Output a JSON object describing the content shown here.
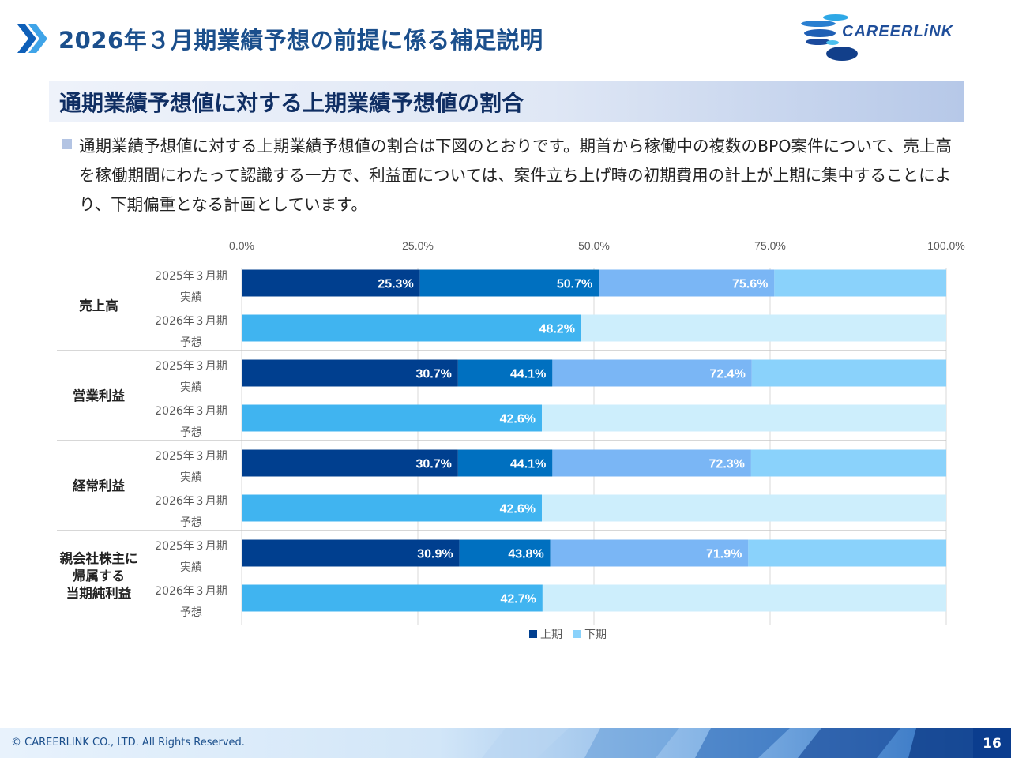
{
  "header": {
    "title": "2026年３月期業績予想の前提に係る補足説明",
    "logo_text": "CAREERLiNK"
  },
  "section": {
    "title": "通期業績予想値に対する上期業績予想値の割合",
    "description": "通期業績予想値に対する上期業績予想値の割合は下図のとおりです。期首から稼働中の複数のBPO案件について、売上高を稼働期間にわたって認識する一方で、利益面については、案件立ち上げ時の初期費用の計上が上期に集中することにより、下期偏重となる計画としています。"
  },
  "footer": {
    "copyright": "© CAREERLINK CO., LTD. All Rights Reserved.",
    "page_number": "16"
  },
  "colors": {
    "title_blue": "#1b4f8c",
    "q1": "#003f8f",
    "q2": "#0070c0",
    "q3": "#7ab6f5",
    "q4": "#8ad2fb",
    "h1_forecast": "#40b4f0",
    "h2_forecast": "#cdeefc"
  },
  "chart_data": {
    "type": "bar",
    "orientation": "horizontal",
    "stacked": true,
    "xlim": [
      0,
      100
    ],
    "x_ticks": [
      "0.0%",
      "25.0%",
      "50.0%",
      "75.0%",
      "100.0%"
    ],
    "legend": [
      "上期",
      "下期"
    ],
    "legend_position": "bottom",
    "groups": [
      {
        "name": "売上高",
        "rows": [
          {
            "label_line1": "2025年３月期",
            "label_line2": "実績",
            "kind": "actual",
            "cumulative": [
              25.3,
              50.7,
              75.6,
              100
            ],
            "labels": [
              "25.3%",
              "50.7%",
              "75.6%"
            ]
          },
          {
            "label_line1": "2026年３月期",
            "label_line2": "予想",
            "kind": "forecast",
            "cumulative": [
              48.2,
              100
            ],
            "labels": [
              "48.2%"
            ]
          }
        ]
      },
      {
        "name": "営業利益",
        "rows": [
          {
            "label_line1": "2025年３月期",
            "label_line2": "実績",
            "kind": "actual",
            "cumulative": [
              30.7,
              44.1,
              72.4,
              100
            ],
            "labels": [
              "30.7%",
              "44.1%",
              "72.4%"
            ]
          },
          {
            "label_line1": "2026年３月期",
            "label_line2": "予想",
            "kind": "forecast",
            "cumulative": [
              42.6,
              100
            ],
            "labels": [
              "42.6%"
            ]
          }
        ]
      },
      {
        "name": "経常利益",
        "rows": [
          {
            "label_line1": "2025年３月期",
            "label_line2": "実績",
            "kind": "actual",
            "cumulative": [
              30.7,
              44.1,
              72.3,
              100
            ],
            "labels": [
              "30.7%",
              "44.1%",
              "72.3%"
            ]
          },
          {
            "label_line1": "2026年３月期",
            "label_line2": "予想",
            "kind": "forecast",
            "cumulative": [
              42.6,
              100
            ],
            "labels": [
              "42.6%"
            ]
          }
        ]
      },
      {
        "name": "親会社株主に帰属する当期純利益",
        "name_lines": [
          "親会社株主に",
          "帰属する",
          "当期純利益"
        ],
        "rows": [
          {
            "label_line1": "2025年３月期",
            "label_line2": "実績",
            "kind": "actual",
            "cumulative": [
              30.9,
              43.8,
              71.9,
              100
            ],
            "labels": [
              "30.9%",
              "43.8%",
              "71.9%"
            ]
          },
          {
            "label_line1": "2026年３月期",
            "label_line2": "予想",
            "kind": "forecast",
            "cumulative": [
              42.7,
              100
            ],
            "labels": [
              "42.7%"
            ]
          }
        ]
      }
    ]
  }
}
